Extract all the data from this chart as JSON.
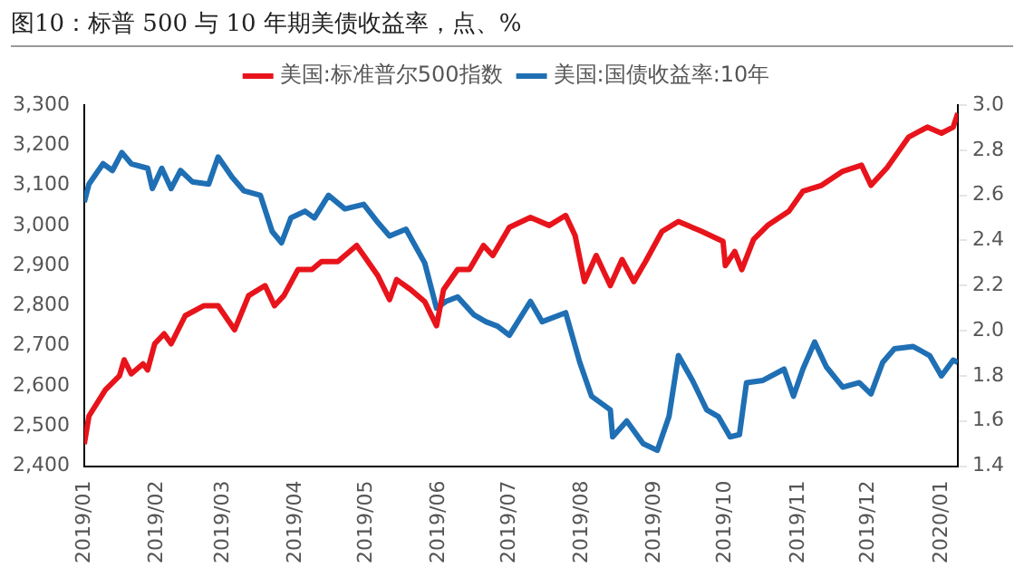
{
  "chart_data": {
    "type": "line",
    "title": "图10：标普 500 与 10 年期美债收益率，点、%",
    "series": [
      {
        "name": "美国:标准普尔500指数",
        "color": "#e8141b",
        "x": [
          "2019-01-01",
          "2019-01-03",
          "2019-01-10",
          "2019-01-16",
          "2019-01-18",
          "2019-01-21",
          "2019-01-26",
          "2019-01-28",
          "2019-01-31",
          "2019-02-04",
          "2019-02-07",
          "2019-02-13",
          "2019-02-21",
          "2019-02-27",
          "2019-03-06",
          "2019-03-12",
          "2019-03-19",
          "2019-03-23",
          "2019-03-27",
          "2019-04-02",
          "2019-04-08",
          "2019-04-12",
          "2019-04-19",
          "2019-04-27",
          "2019-04-30",
          "2019-05-06",
          "2019-05-11",
          "2019-05-14",
          "2019-05-20",
          "2019-05-26",
          "2019-05-31",
          "2019-06-03",
          "2019-06-09",
          "2019-06-14",
          "2019-06-20",
          "2019-06-24",
          "2019-07-01",
          "2019-07-10",
          "2019-07-18",
          "2019-07-25",
          "2019-07-29",
          "2019-08-02",
          "2019-08-07",
          "2019-08-13",
          "2019-08-18",
          "2019-08-23",
          "2019-08-28",
          "2019-09-04",
          "2019-09-11",
          "2019-09-21",
          "2019-09-30",
          "2019-10-01",
          "2019-10-05",
          "2019-10-08",
          "2019-10-13",
          "2019-10-19",
          "2019-10-28",
          "2019-11-03",
          "2019-11-11",
          "2019-11-20",
          "2019-11-28",
          "2019-12-02",
          "2019-12-09",
          "2019-12-18",
          "2019-12-26",
          "2020-01-01",
          "2020-01-06",
          "2020-01-08"
        ],
        "values": [
          2455,
          2525,
          2590,
          2625,
          2665,
          2630,
          2655,
          2640,
          2705,
          2730,
          2705,
          2775,
          2800,
          2800,
          2740,
          2825,
          2850,
          2800,
          2825,
          2890,
          2890,
          2910,
          2910,
          2950,
          2925,
          2875,
          2815,
          2865,
          2840,
          2810,
          2750,
          2840,
          2890,
          2890,
          2950,
          2925,
          2995,
          3020,
          3000,
          3025,
          2975,
          2860,
          2925,
          2850,
          2915,
          2860,
          2910,
          2985,
          3010,
          2985,
          2960,
          2900,
          2935,
          2890,
          2965,
          3000,
          3035,
          3085,
          3100,
          3135,
          3150,
          3100,
          3145,
          3220,
          3245,
          3230,
          3245,
          3280
        ]
      },
      {
        "name": "美国:国债收益率:10年",
        "color": "#1f6fb4",
        "axis": "y2",
        "x": [
          "2019-01-01",
          "2019-01-03",
          "2019-01-09",
          "2019-01-13",
          "2019-01-17",
          "2019-01-21",
          "2019-01-28",
          "2019-01-30",
          "2019-02-03",
          "2019-02-07",
          "2019-02-11",
          "2019-02-16",
          "2019-02-23",
          "2019-02-27",
          "2019-03-05",
          "2019-03-10",
          "2019-03-17",
          "2019-03-22",
          "2019-03-26",
          "2019-03-30",
          "2019-04-05",
          "2019-04-09",
          "2019-04-15",
          "2019-04-22",
          "2019-04-30",
          "2019-05-06",
          "2019-05-11",
          "2019-05-18",
          "2019-05-26",
          "2019-05-31",
          "2019-06-04",
          "2019-06-09",
          "2019-06-16",
          "2019-06-21",
          "2019-06-26",
          "2019-07-01",
          "2019-07-10",
          "2019-07-15",
          "2019-07-25",
          "2019-07-31",
          "2019-08-05",
          "2019-08-13",
          "2019-08-14",
          "2019-08-20",
          "2019-08-27",
          "2019-09-02",
          "2019-09-07",
          "2019-09-11",
          "2019-09-17",
          "2019-09-23",
          "2019-09-28",
          "2019-10-03",
          "2019-10-07",
          "2019-10-10",
          "2019-10-17",
          "2019-10-26",
          "2019-10-30",
          "2019-11-03",
          "2019-11-08",
          "2019-11-13",
          "2019-11-20",
          "2019-11-27",
          "2019-12-02",
          "2019-12-07",
          "2019-12-12",
          "2019-12-20",
          "2019-12-27",
          "2020-01-01",
          "2020-01-06",
          "2020-01-08"
        ],
        "values": [
          2.57,
          2.65,
          2.74,
          2.71,
          2.79,
          2.74,
          2.72,
          2.63,
          2.72,
          2.63,
          2.71,
          2.66,
          2.65,
          2.77,
          2.68,
          2.62,
          2.6,
          2.44,
          2.39,
          2.5,
          2.53,
          2.5,
          2.6,
          2.54,
          2.56,
          2.48,
          2.42,
          2.45,
          2.3,
          2.1,
          2.13,
          2.15,
          2.07,
          2.04,
          2.02,
          1.98,
          2.13,
          2.04,
          2.08,
          1.86,
          1.71,
          1.65,
          1.53,
          1.6,
          1.5,
          1.47,
          1.62,
          1.89,
          1.78,
          1.65,
          1.62,
          1.53,
          1.54,
          1.77,
          1.78,
          1.83,
          1.71,
          1.83,
          1.95,
          1.84,
          1.75,
          1.77,
          1.72,
          1.86,
          1.92,
          1.93,
          1.89,
          1.8,
          1.87,
          1.86
        ]
      }
    ],
    "xlim": [
      "2019-01-01",
      "2020-01-08"
    ],
    "xticks": [
      {
        "value": "2019-01-01",
        "label": "2019/01"
      },
      {
        "value": "2019-02-01",
        "label": "2019/02"
      },
      {
        "value": "2019-03-01",
        "label": "2019/03"
      },
      {
        "value": "2019-04-01",
        "label": "2019/04"
      },
      {
        "value": "2019-05-01",
        "label": "2019/05"
      },
      {
        "value": "2019-06-01",
        "label": "2019/06"
      },
      {
        "value": "2019-07-01",
        "label": "2019/07"
      },
      {
        "value": "2019-08-01",
        "label": "2019/08"
      },
      {
        "value": "2019-09-01",
        "label": "2019/09"
      },
      {
        "value": "2019-10-01",
        "label": "2019/10"
      },
      {
        "value": "2019-11-01",
        "label": "2019/11"
      },
      {
        "value": "2019-12-01",
        "label": "2019/12"
      },
      {
        "value": "2020-01-01",
        "label": "2020/01"
      }
    ],
    "ylim": [
      2400,
      3300
    ],
    "yticks": [
      {
        "value": 2400,
        "label": "2,400"
      },
      {
        "value": 2500,
        "label": "2,500"
      },
      {
        "value": 2600,
        "label": "2,600"
      },
      {
        "value": 2700,
        "label": "2,700"
      },
      {
        "value": 2800,
        "label": "2,800"
      },
      {
        "value": 2900,
        "label": "2,900"
      },
      {
        "value": 3000,
        "label": "3,000"
      },
      {
        "value": 3100,
        "label": "3,100"
      },
      {
        "value": 3200,
        "label": "3,200"
      },
      {
        "value": 3300,
        "label": "3,300"
      }
    ],
    "y2lim": [
      1.4,
      3.0
    ],
    "y2ticks": [
      {
        "value": 1.4,
        "label": "1.4"
      },
      {
        "value": 1.6,
        "label": "1.6"
      },
      {
        "value": 1.8,
        "label": "1.8"
      },
      {
        "value": 2.0,
        "label": "2.0"
      },
      {
        "value": 2.2,
        "label": "2.2"
      },
      {
        "value": 2.4,
        "label": "2.4"
      },
      {
        "value": 2.6,
        "label": "2.6"
      },
      {
        "value": 2.8,
        "label": "2.8"
      },
      {
        "value": 3.0,
        "label": "3.0"
      }
    ],
    "grid": false,
    "legend": "top",
    "marker": "none",
    "line_style": "solid"
  }
}
